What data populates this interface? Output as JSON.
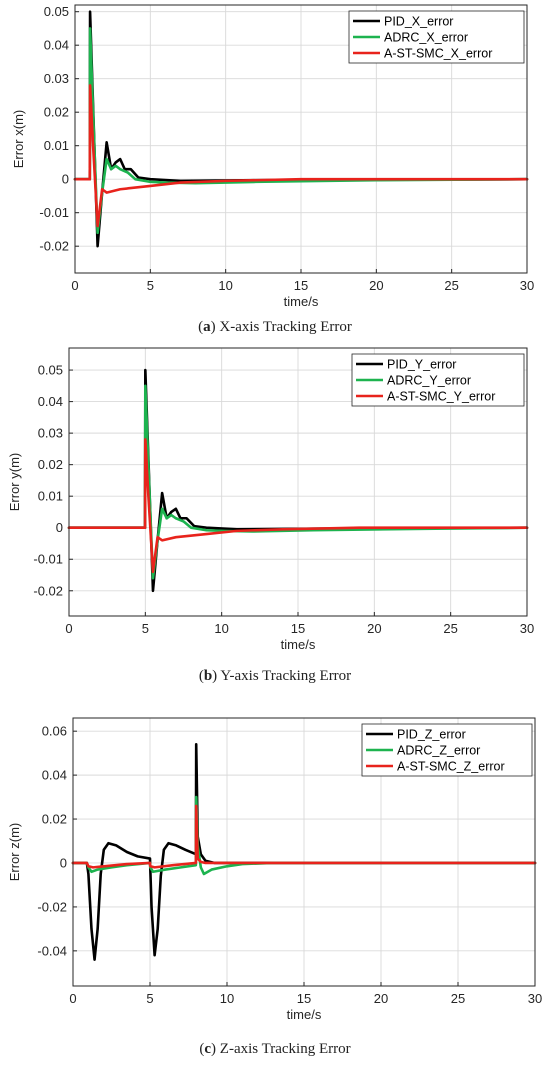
{
  "captions": [
    {
      "label": "a",
      "text": "X-axis Tracking Error"
    },
    {
      "label": "b",
      "text": "Y-axis Tracking Error"
    },
    {
      "label": "c",
      "text": "Z-axis Tracking Error"
    }
  ],
  "colors": {
    "pid": "#000000",
    "adrc": "#1db34f",
    "smc": "#e8231c"
  },
  "chart_data": [
    {
      "type": "line",
      "xlabel": "time/s",
      "ylabel": "Error x(m)",
      "xlim": [
        0,
        30
      ],
      "ylim": [
        -0.028,
        0.052
      ],
      "xticks": [
        0,
        5,
        10,
        15,
        20,
        25,
        30
      ],
      "yticks": [
        0.05,
        0.04,
        0.03,
        0.02,
        0.01,
        0,
        -0.01,
        -0.02
      ],
      "ytick_labels": [
        "0.05",
        "0.04",
        "0.03",
        "0.02",
        "0.01",
        "0",
        "-0.01",
        "-0.02"
      ],
      "grid": true,
      "legend": "top-right",
      "series": [
        {
          "name": "PID_X_error",
          "x": [
            0,
            0.98,
            1.0,
            1.2,
            1.5,
            1.8,
            2.1,
            2.4,
            2.7,
            3.0,
            3.3,
            3.7,
            4.2,
            5.0,
            7.0,
            12.0,
            30.0
          ],
          "y": [
            0,
            0,
            0.05,
            0.022,
            -0.02,
            -0.004,
            0.011,
            0.003,
            0.005,
            0.006,
            0.003,
            0.003,
            0.0005,
            0,
            -0.0005,
            -0.0003,
            0
          ]
        },
        {
          "name": "ADRC_X_error",
          "x": [
            0,
            0.98,
            1.0,
            1.2,
            1.5,
            1.8,
            2.1,
            2.4,
            2.7,
            3.0,
            3.5,
            4.0,
            5.0,
            6.0,
            8.0,
            12.0,
            20.0,
            30.0
          ],
          "y": [
            0,
            0,
            0.045,
            0.02,
            -0.016,
            -0.004,
            0.006,
            0.003,
            0.004,
            0.003,
            0.002,
            0,
            -0.0008,
            -0.001,
            -0.0012,
            -0.0008,
            -0.0003,
            0
          ]
        },
        {
          "name": "A-ST-SMC_X_error",
          "x": [
            0,
            0.98,
            1.0,
            1.2,
            1.5,
            1.8,
            2.1,
            3.0,
            5.0,
            7.0,
            10.0,
            15.0,
            30.0
          ],
          "y": [
            0,
            0,
            0.028,
            0.01,
            -0.014,
            -0.003,
            -0.004,
            -0.003,
            -0.002,
            -0.001,
            -0.0005,
            0,
            0
          ]
        }
      ]
    },
    {
      "type": "line",
      "xlabel": "time/s",
      "ylabel": "Error y(m)",
      "xlim": [
        0,
        30
      ],
      "ylim": [
        -0.028,
        0.057
      ],
      "xticks": [
        0,
        5,
        10,
        15,
        20,
        25,
        30
      ],
      "yticks": [
        0.05,
        0.04,
        0.03,
        0.02,
        0.01,
        0,
        -0.01,
        -0.02
      ],
      "ytick_labels": [
        "0.05",
        "0.04",
        "0.03",
        "0.02",
        "0.01",
        "0",
        "-0.01",
        "-0.02"
      ],
      "grid": true,
      "legend": "top-right",
      "series": [
        {
          "name": "PID_Y_error",
          "x": [
            0,
            4.98,
            5.0,
            5.2,
            5.5,
            5.8,
            6.1,
            6.4,
            6.7,
            7.0,
            7.3,
            7.7,
            8.2,
            9.0,
            11.0,
            16.0,
            30.0
          ],
          "y": [
            0,
            0,
            0.05,
            0.022,
            -0.02,
            -0.004,
            0.011,
            0.003,
            0.005,
            0.006,
            0.003,
            0.003,
            0.0005,
            0,
            -0.0005,
            -0.0003,
            0
          ]
        },
        {
          "name": "ADRC_Y_error",
          "x": [
            0,
            4.98,
            5.0,
            5.2,
            5.5,
            5.8,
            6.1,
            6.4,
            6.7,
            7.0,
            7.5,
            8.0,
            9.0,
            10.0,
            12.0,
            16.0,
            24.0,
            30.0
          ],
          "y": [
            0,
            0,
            0.045,
            0.02,
            -0.016,
            -0.004,
            0.006,
            0.003,
            0.004,
            0.003,
            0.002,
            0,
            -0.0008,
            -0.001,
            -0.0012,
            -0.0008,
            -0.0003,
            0
          ]
        },
        {
          "name": "A-ST-SMC_Y_error",
          "x": [
            0,
            4.98,
            5.0,
            5.2,
            5.5,
            5.8,
            6.1,
            7.0,
            9.0,
            11.0,
            14.0,
            19.0,
            30.0
          ],
          "y": [
            0,
            0,
            0.028,
            0.01,
            -0.014,
            -0.003,
            -0.004,
            -0.003,
            -0.002,
            -0.001,
            -0.0005,
            0,
            0
          ]
        }
      ]
    },
    {
      "type": "line",
      "xlabel": "time/s",
      "ylabel": "Error z(m)",
      "xlim": [
        0,
        30
      ],
      "ylim": [
        -0.056,
        0.066
      ],
      "xticks": [
        0,
        5,
        10,
        15,
        20,
        25,
        30
      ],
      "yticks": [
        0.06,
        0.04,
        0.02,
        0,
        -0.02,
        -0.04
      ],
      "ytick_labels": [
        "0.06",
        "0.04",
        "0.02",
        "0",
        "-0.02",
        "-0.04"
      ],
      "grid": true,
      "legend": "top-right",
      "series": [
        {
          "name": "PID_Z_error",
          "x": [
            0,
            0.9,
            1.0,
            1.2,
            1.4,
            1.6,
            1.8,
            2.0,
            2.3,
            2.8,
            3.5,
            4.2,
            5.0,
            5.02,
            5.1,
            5.3,
            5.5,
            5.7,
            5.9,
            6.2,
            6.7,
            7.3,
            7.98,
            8.0,
            8.1,
            8.3,
            8.6,
            9.2,
            12.0,
            30.0
          ],
          "y": [
            0,
            0,
            -0.005,
            -0.03,
            -0.044,
            -0.03,
            -0.005,
            0.006,
            0.009,
            0.008,
            0.005,
            0.003,
            0.002,
            -0.003,
            -0.02,
            -0.042,
            -0.03,
            -0.006,
            0.006,
            0.009,
            0.008,
            0.006,
            0.004,
            0.054,
            0.012,
            0.004,
            0.001,
            0,
            0,
            0
          ]
        },
        {
          "name": "ADRC_Z_error",
          "x": [
            0,
            0.9,
            1.0,
            1.2,
            1.6,
            2.5,
            3.5,
            5.0,
            5.02,
            5.2,
            6.0,
            7.0,
            7.98,
            8.0,
            8.1,
            8.3,
            8.5,
            9.0,
            10.0,
            11.0,
            13.0,
            30.0
          ],
          "y": [
            0,
            0,
            -0.002,
            -0.004,
            -0.003,
            -0.002,
            -0.001,
            0,
            -0.002,
            -0.004,
            -0.003,
            -0.002,
            -0.001,
            0.03,
            0.008,
            -0.002,
            -0.005,
            -0.003,
            -0.0015,
            -0.0005,
            0,
            0
          ]
        },
        {
          "name": "A-ST-SMC_Z_error",
          "x": [
            0,
            0.9,
            1.0,
            1.3,
            2.0,
            3.5,
            5.0,
            5.02,
            5.3,
            6.5,
            7.98,
            8.0,
            8.1,
            8.3,
            8.6,
            10.0,
            30.0
          ],
          "y": [
            0,
            0,
            -0.0015,
            -0.002,
            -0.0015,
            -0.0005,
            0,
            -0.0015,
            -0.002,
            -0.001,
            0,
            0.026,
            0.002,
            0.0005,
            0,
            0,
            0
          ]
        }
      ]
    }
  ]
}
